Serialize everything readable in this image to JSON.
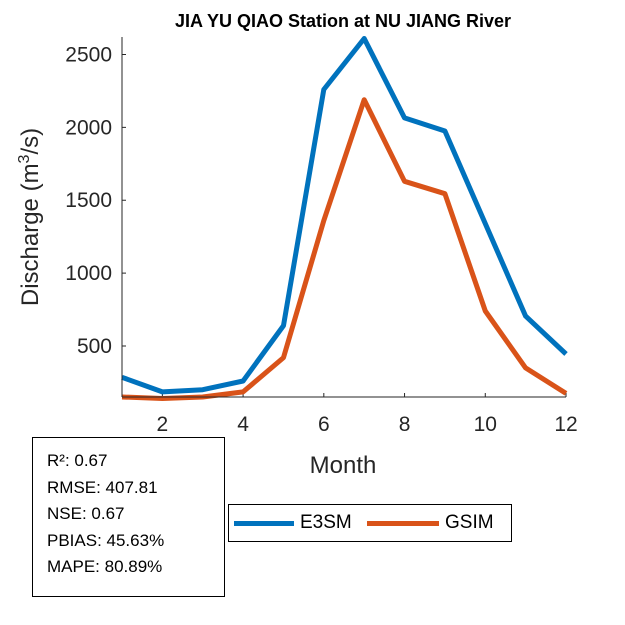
{
  "chart_data": {
    "type": "line",
    "title": "JIA YU QIAO  Station at  NU JIANG  River",
    "xlabel": "Month",
    "ylabel": "Discharge (m",
    "ylabel_sup": "3",
    "ylabel_suffix": "/s)",
    "xlim": [
      1,
      12
    ],
    "ylim": [
      150,
      2620
    ],
    "xticks": [
      2,
      4,
      6,
      8,
      10,
      12
    ],
    "yticks": [
      500,
      1000,
      1500,
      2000,
      2500
    ],
    "x": [
      1,
      2,
      3,
      4,
      5,
      6,
      7,
      8,
      9,
      10,
      11,
      12
    ],
    "series": [
      {
        "name": "E3SM",
        "color": "#0072BD",
        "values": [
          285,
          185,
          200,
          260,
          640,
          2260,
          2610,
          2065,
          1975,
          1340,
          705,
          445
        ]
      },
      {
        "name": "GSIM",
        "color": "#D95319",
        "values": [
          150,
          140,
          150,
          185,
          420,
          1360,
          2190,
          1630,
          1545,
          740,
          350,
          175
        ]
      }
    ]
  },
  "stats": {
    "r2": "R²: 0.67",
    "rmse": "RMSE: 407.81",
    "nse": "NSE: 0.67",
    "pbias": "PBIAS: 45.63%",
    "mape": "MAPE: 80.89%"
  }
}
